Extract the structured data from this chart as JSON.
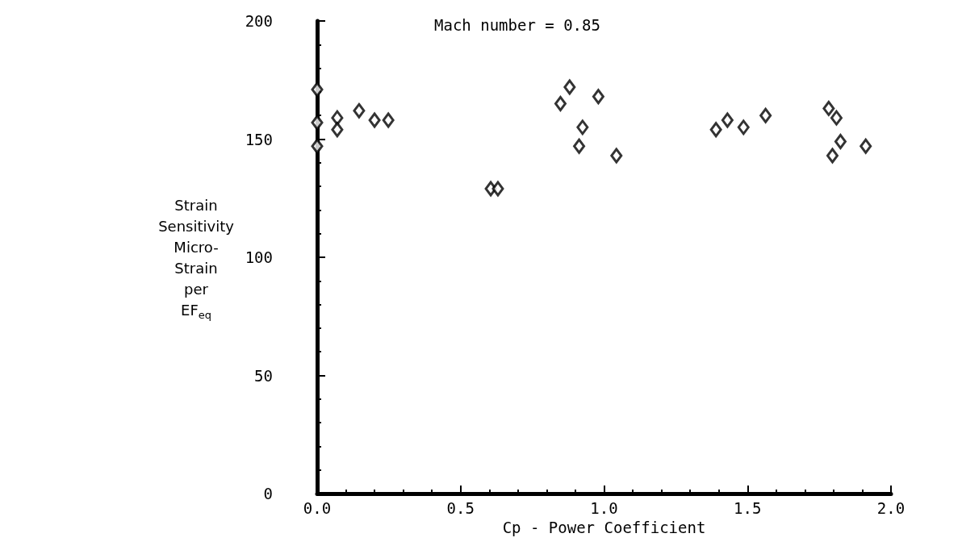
{
  "chart_data": {
    "type": "scatter",
    "title": "Mach number = 0.85",
    "xlabel": "Cp - Power Coefficient",
    "ylabel": "Strain\nSensitivity\nMicro-\nStrain\nper\nEF$_{eq}$",
    "x": [
      0,
      0,
      0,
      0.07,
      0.07,
      0.146,
      0.2,
      0.248,
      0.605,
      0.63,
      0.848,
      0.88,
      0.913,
      0.925,
      0.98,
      1.043,
      1.39,
      1.43,
      1.486,
      1.563,
      1.783,
      1.81,
      1.796,
      1.824,
      1.912
    ],
    "values": [
      171,
      157,
      147,
      159,
      154,
      162,
      158,
      158,
      129,
      129,
      165,
      172,
      147,
      155,
      168,
      143,
      154,
      158,
      155,
      160,
      163,
      159,
      143,
      149,
      147
    ],
    "color": "#000000",
    "marker": "diamond",
    "grid": false,
    "xlim": [
      0,
      2
    ],
    "xticks": [
      {
        "value": 0,
        "label": "0.0"
      },
      0.5,
      {
        "value": 1,
        "label": "1.0"
      },
      1.5,
      {
        "value": 2,
        "label": "2.0"
      }
    ],
    "ylim": [
      0,
      200
    ],
    "yticks": [
      0,
      50,
      100,
      150,
      200
    ]
  }
}
